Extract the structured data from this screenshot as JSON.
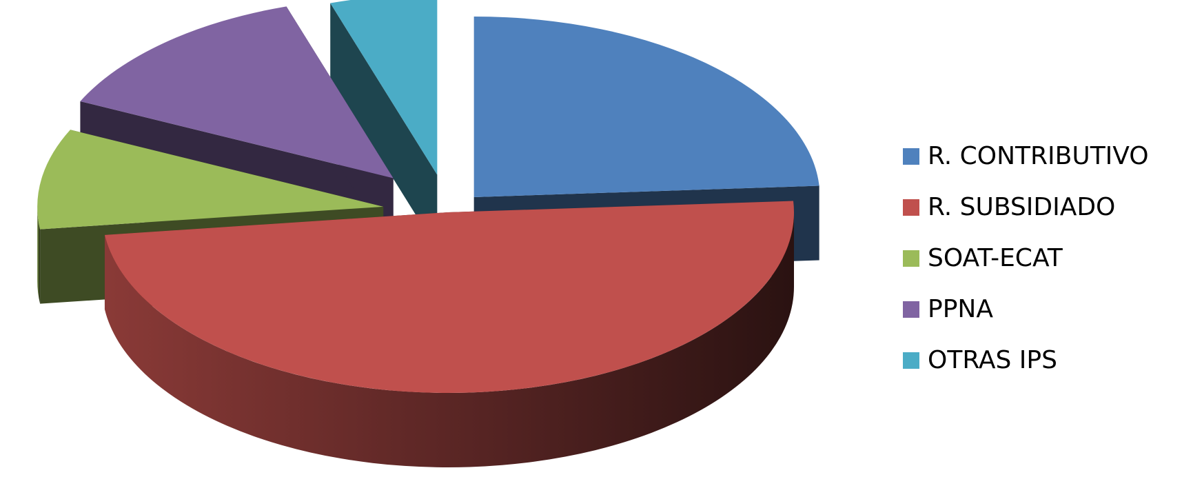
{
  "chart_data": {
    "type": "pie",
    "style": "3d-exploded",
    "legend_position": "right",
    "categories": [
      "R. CONTRIBUTIVO",
      "R. SUBSIDIADO",
      "SOAT-ECAT",
      "PPNA",
      "OTRAS IPS"
    ],
    "values": [
      24,
      49,
      9,
      13,
      5
    ],
    "colors": [
      "#4F81BD",
      "#C0504D",
      "#9BBB59",
      "#8064A2",
      "#4BACC6"
    ]
  }
}
